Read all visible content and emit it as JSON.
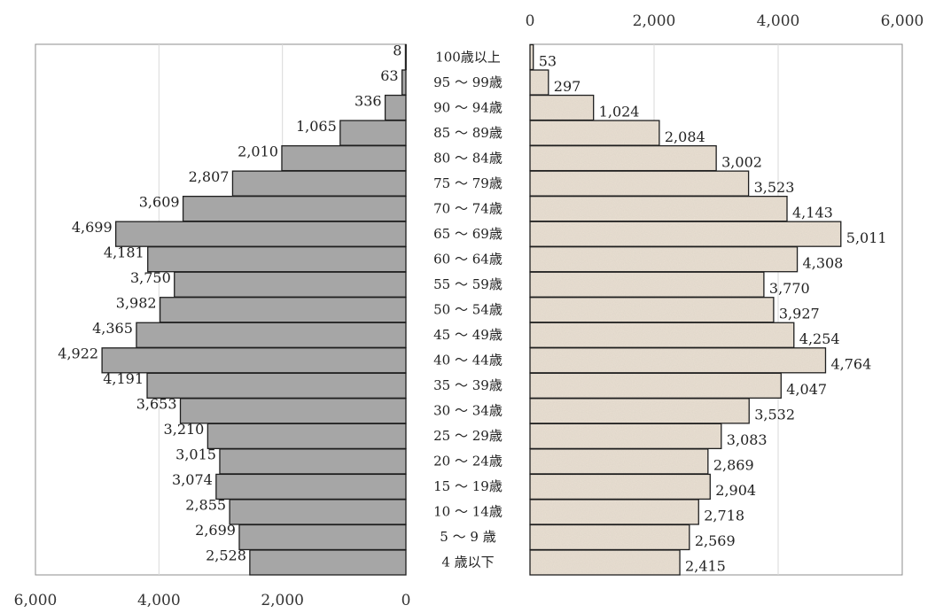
{
  "chart_data": {
    "type": "bar",
    "orientation": "horizontal",
    "layout": "population-pyramid",
    "categories": [
      "100歳以上",
      "95 ～ 99歳",
      "90 ～ 94歳",
      "85 ～ 89歳",
      "80 ～ 84歳",
      "75 ～ 79歳",
      "70 ～ 74歳",
      "65 ～ 69歳",
      "60 ～ 64歳",
      "55 ～ 59歳",
      "50 ～ 54歳",
      "45 ～ 49歳",
      "40 ～ 44歳",
      "35 ～ 39歳",
      "30 ～ 34歳",
      "25 ～ 29歳",
      "20 ～ 24歳",
      "15 ～ 19歳",
      "10 ～ 14歳",
      "5 ～ 9 歳",
      "4 歳以下"
    ],
    "series": [
      {
        "side": "left",
        "color": "#a6a6a6",
        "values": [
          8,
          63,
          336,
          1065,
          2010,
          2807,
          3609,
          4699,
          4181,
          3750,
          3982,
          4365,
          4922,
          4191,
          3653,
          3210,
          3015,
          3074,
          2855,
          2699,
          2528
        ],
        "labels": [
          "8",
          "63",
          "336",
          "1,065",
          "2,010",
          "2,807",
          "3,609",
          "4,699",
          "4,181",
          "3,750",
          "3,982",
          "4,365",
          "4,922",
          "4,191",
          "3,653",
          "3,210",
          "3,015",
          "3,074",
          "2,855",
          "2,699",
          "2,528"
        ]
      },
      {
        "side": "right",
        "color": "#e8ddd0",
        "values": [
          53,
          297,
          1024,
          2084,
          3002,
          3523,
          4143,
          5011,
          4308,
          3770,
          3927,
          4254,
          4764,
          4047,
          3532,
          3083,
          2869,
          2904,
          2718,
          2569,
          2415
        ],
        "labels": [
          "53",
          "297",
          "1,024",
          "2,084",
          "3,002",
          "3,523",
          "4,143",
          "5,011",
          "4,308",
          "3,770",
          "3,927",
          "4,254",
          "4,764",
          "4,047",
          "3,532",
          "3,083",
          "2,869",
          "2,904",
          "2,718",
          "2,569",
          "2,415"
        ]
      }
    ],
    "left_axis": {
      "position": "bottom",
      "reversed": true,
      "range": [
        0,
        6000
      ],
      "ticks": [
        6000,
        4000,
        2000,
        0
      ],
      "tick_labels": [
        "6,000",
        "4,000",
        "2,000",
        "0"
      ]
    },
    "right_axis": {
      "position": "top",
      "range": [
        0,
        6000
      ],
      "ticks": [
        0,
        2000,
        4000,
        6000
      ],
      "tick_labels": [
        "0",
        "2,000",
        "4,000",
        "6,000"
      ]
    },
    "grid": true,
    "title": "",
    "xlabel": "",
    "ylabel": ""
  }
}
